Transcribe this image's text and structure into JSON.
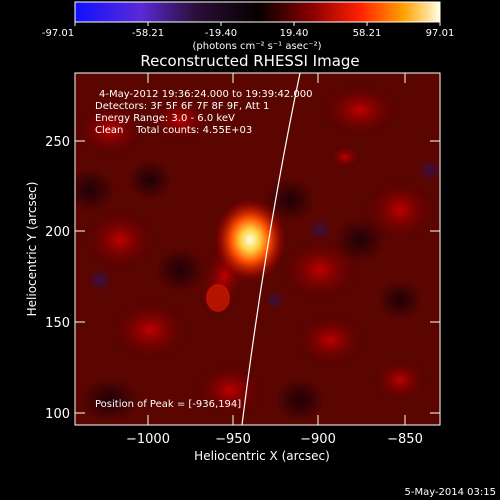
{
  "colorbar": {
    "ticks": [
      "-97.01",
      "-58.21",
      "-19.40",
      "19.40",
      "58.21",
      "97.01"
    ],
    "units": "(photons cm⁻² s⁻¹ asec⁻²)"
  },
  "title": "Reconstructed RHESSI Image",
  "info": {
    "time_range": "4-May-2012 19:36:24.000 to 19:39:42.000",
    "detectors": "Detectors: 3F 5F 6F 7F 8F 9F, Att 1",
    "energy": "Energy Range: 3.0 - 6.0 keV",
    "method": "Clean    Total counts: 4.55E+03"
  },
  "peak": "Position of Peak = [-936,194]",
  "axes": {
    "x_label": "Heliocentric X (arcsec)",
    "y_label": "Heliocentric Y (arcsec)",
    "x_ticks": [
      "−1000",
      "−950",
      "−900",
      "−850"
    ],
    "y_ticks": [
      "250",
      "200",
      "150",
      "100"
    ]
  },
  "footer_date": "5-May-2014 03:15"
}
